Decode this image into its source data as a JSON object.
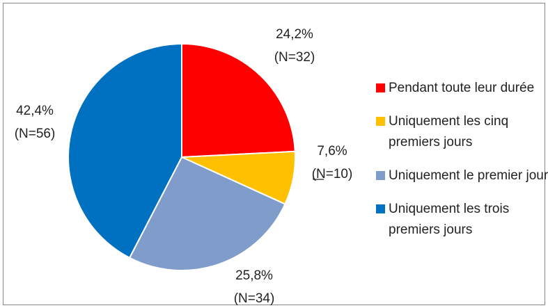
{
  "chart_data": {
    "type": "pie",
    "categories": [
      "Pendant toute leur durée",
      "Uniquement les cinq premiers jours",
      "Uniquement le premier jour",
      "Uniquement les trois premiers jours"
    ],
    "values": [
      24.2,
      7.6,
      25.8,
      42.4
    ],
    "value_labels": [
      "24,2%",
      "7,6%",
      "25,8%",
      "42,4%"
    ],
    "count_labels": [
      "(N=32)",
      "(N=10)",
      "(N=34)",
      "(N=56)"
    ],
    "colors": [
      "#ff0000",
      "#ffc000",
      "#7f9ccb",
      "#0070c0"
    ],
    "legend": "right"
  }
}
